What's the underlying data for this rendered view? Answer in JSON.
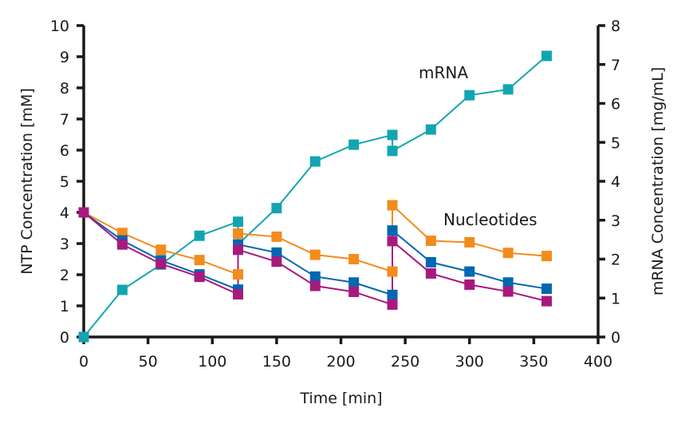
{
  "chart_data": {
    "type": "line",
    "xlabel": "Time [min]",
    "ylabel_left": "NTP Concentration [mM]",
    "ylabel_right": "mRNA Concentration [mg/mL]",
    "xlim": [
      0,
      400
    ],
    "ylim_left": [
      0,
      10
    ],
    "ylim_right": [
      0,
      8
    ],
    "xticks": [
      0,
      50,
      100,
      150,
      200,
      250,
      300,
      350,
      400
    ],
    "yticks_left": [
      0,
      1,
      2,
      3,
      4,
      5,
      6,
      7,
      8,
      9,
      10
    ],
    "yticks_right": [
      0,
      1,
      2,
      3,
      4,
      5,
      6,
      7,
      8
    ],
    "grid": false,
    "annotations": [
      {
        "text": "mRNA",
        "x": 290,
        "y_left": 8.5
      },
      {
        "text": "Nucleotides",
        "x": 340,
        "y_left": 3.8
      }
    ],
    "x": [
      0,
      30,
      60,
      90,
      120,
      120,
      150,
      180,
      210,
      240,
      240,
      270,
      300,
      330,
      360
    ],
    "series": [
      {
        "axis": "left",
        "color": "#F28C1C",
        "values": [
          4.0,
          3.34,
          2.8,
          2.47,
          2.01,
          3.32,
          3.22,
          2.64,
          2.5,
          2.1,
          4.23,
          3.09,
          3.04,
          2.7,
          2.6
        ]
      },
      {
        "axis": "left",
        "color": "#0067B1",
        "values": [
          4.0,
          3.1,
          2.46,
          2.01,
          1.52,
          2.97,
          2.71,
          1.94,
          1.75,
          1.35,
          3.42,
          2.4,
          2.1,
          1.75,
          1.55
        ]
      },
      {
        "axis": "left",
        "color": "#A8197E",
        "values": [
          4.0,
          2.97,
          2.35,
          1.93,
          1.37,
          2.8,
          2.42,
          1.64,
          1.45,
          1.04,
          3.08,
          2.04,
          1.68,
          1.46,
          1.15
        ]
      },
      {
        "axis": "right",
        "color": "#12A5B0",
        "values": [
          0.0,
          1.21,
          1.86,
          2.6,
          2.96,
          2.38,
          3.31,
          4.51,
          4.94,
          5.19,
          4.78,
          5.33,
          6.21,
          6.36,
          7.22
        ]
      }
    ]
  }
}
